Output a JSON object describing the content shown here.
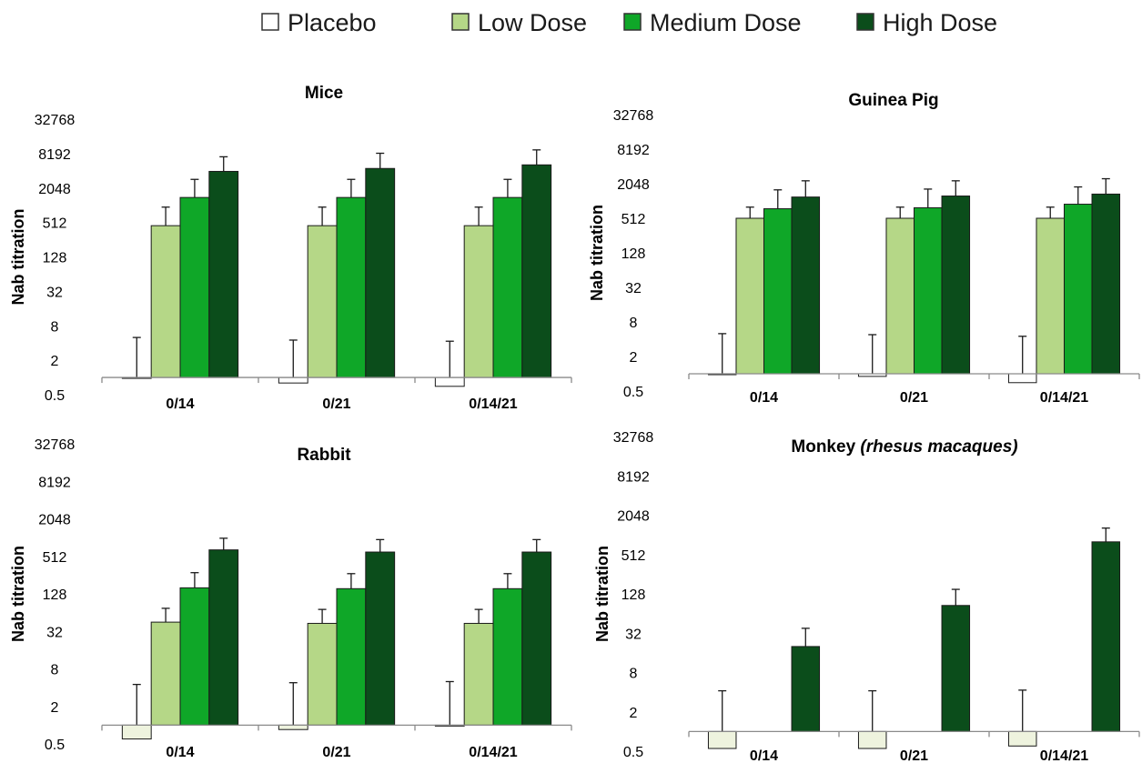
{
  "legend": [
    {
      "name": "Placebo",
      "color": "#ffffff"
    },
    {
      "name": "Low Dose",
      "color": "#b5d787"
    },
    {
      "name": "Medium Dose",
      "color": "#0fa728"
    },
    {
      "name": "High Dose",
      "color": "#0b4d1b"
    }
  ],
  "chart_data": [
    {
      "type": "bar",
      "title": "Mice",
      "title_italic": "",
      "ylabel": "Nab titration",
      "yscale": "log2",
      "ylim": [
        0.5,
        32768
      ],
      "yticks": [
        "32768",
        "8192",
        "2048",
        "512",
        "128",
        "32",
        "8",
        "2",
        "0.5"
      ],
      "categories": [
        "0/14",
        "0/21",
        "0/14/21"
      ],
      "series": [
        {
          "name": "Placebo",
          "color": "#ffffff",
          "values": [
            1.0,
            0.8,
            0.7
          ],
          "err_high": [
            5,
            4.5,
            4.3
          ]
        },
        {
          "name": "Low Dose",
          "color": "#b5d787",
          "values": [
            450,
            450,
            450
          ],
          "err_high": [
            950,
            950,
            950
          ]
        },
        {
          "name": "Medium Dose",
          "color": "#0fa728",
          "values": [
            1400,
            1400,
            1400
          ],
          "err_high": [
            2900,
            2900,
            2900
          ]
        },
        {
          "name": "High Dose",
          "color": "#0b4d1b",
          "values": [
            4000,
            4500,
            5200
          ],
          "err_high": [
            7200,
            8300,
            9500
          ]
        }
      ]
    },
    {
      "type": "bar",
      "title": "Guinea Pig",
      "title_italic": "",
      "ylabel": "Nab titration",
      "yscale": "log2",
      "ylim": [
        0.5,
        32768
      ],
      "yticks": [
        "32768",
        "8192",
        "2048",
        "512",
        "128",
        "32",
        "8",
        "2",
        "0.5"
      ],
      "categories": [
        "0/14",
        "0/21",
        "0/14/21"
      ],
      "series": [
        {
          "name": "Placebo",
          "color": "#ffffff",
          "values": [
            1.0,
            0.9,
            0.7
          ],
          "err_high": [
            5,
            4.8,
            4.5
          ]
        },
        {
          "name": "Low Dose",
          "color": "#b5d787",
          "values": [
            512,
            512,
            512
          ],
          "err_high": [
            800,
            800,
            800
          ]
        },
        {
          "name": "Medium Dose",
          "color": "#0fa728",
          "values": [
            750,
            780,
            900
          ],
          "err_high": [
            1600,
            1650,
            1800
          ]
        },
        {
          "name": "High Dose",
          "color": "#0b4d1b",
          "values": [
            1200,
            1250,
            1350
          ],
          "err_high": [
            2300,
            2300,
            2500
          ]
        }
      ]
    },
    {
      "type": "bar",
      "title": "Rabbit",
      "title_italic": "",
      "ylabel": "Nab titration",
      "yscale": "log2",
      "ylim": [
        0.5,
        32768
      ],
      "yticks": [
        "32768",
        "8192",
        "2048",
        "512",
        "128",
        "32",
        "8",
        "2",
        "0.5"
      ],
      "categories": [
        "0/14",
        "0/21",
        "0/14/21"
      ],
      "series": [
        {
          "name": "Placebo",
          "color": "#eef3de",
          "values": [
            0.6,
            0.85,
            1.0
          ],
          "err_high": [
            4.5,
            4.8,
            5
          ]
        },
        {
          "name": "Low Dose",
          "color": "#b5d787",
          "values": [
            45,
            43,
            43
          ],
          "err_high": [
            75,
            72,
            72
          ]
        },
        {
          "name": "Medium Dose",
          "color": "#0fa728",
          "values": [
            160,
            155,
            155
          ],
          "err_high": [
            280,
            270,
            270
          ]
        },
        {
          "name": "High Dose",
          "color": "#0b4d1b",
          "values": [
            650,
            600,
            600
          ],
          "err_high": [
            1000,
            950,
            950
          ]
        }
      ]
    },
    {
      "type": "bar",
      "title": "Monkey ",
      "title_italic": "(rhesus macaques)",
      "ylabel": "Nab titration",
      "yscale": "log2",
      "ylim": [
        0.5,
        32768
      ],
      "yticks": [
        "32768",
        "8192",
        "2048",
        "512",
        "128",
        "32",
        "8",
        "2",
        "0.5"
      ],
      "categories": [
        "0/14",
        "0/21",
        "0/14/21"
      ],
      "series": [
        {
          "name": "Placebo",
          "color": "#eef3de",
          "values": [
            0.55,
            0.55,
            0.6
          ],
          "err_high": [
            4.2,
            4.2,
            4.3
          ]
        },
        {
          "name": "Low Dose",
          "color": "#b5d787",
          "values": [
            null,
            null,
            null
          ],
          "err_high": [
            null,
            null,
            null
          ]
        },
        {
          "name": "Medium Dose",
          "color": "#0fa728",
          "values": [
            null,
            null,
            null
          ],
          "err_high": [
            null,
            null,
            null
          ]
        },
        {
          "name": "High Dose",
          "color": "#0b4d1b",
          "values": [
            20,
            85,
            800
          ],
          "err_high": [
            38,
            150,
            1300
          ]
        }
      ]
    }
  ]
}
